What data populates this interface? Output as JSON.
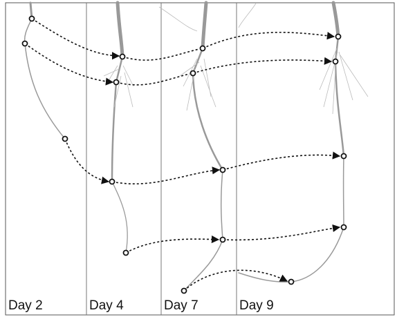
{
  "panels": [
    {
      "label": "Day 2"
    },
    {
      "label": "Day 4"
    },
    {
      "label": "Day 7"
    },
    {
      "label": "Day 9"
    }
  ]
}
